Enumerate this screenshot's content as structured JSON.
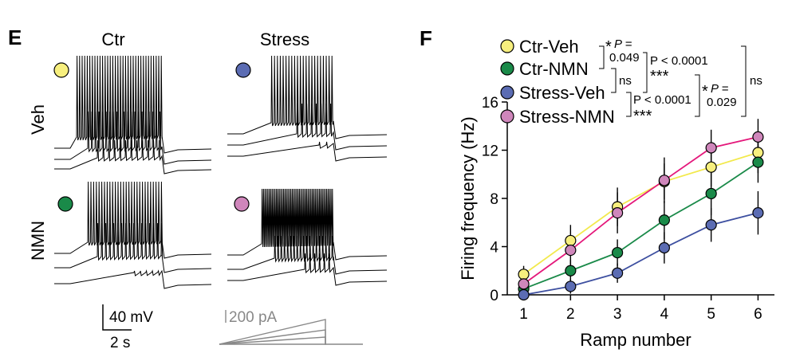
{
  "panel_e": {
    "letter": "E",
    "columns": [
      "Ctr",
      "Stress"
    ],
    "rows": [
      "Veh",
      "NMN"
    ],
    "condition_colors": [
      "#f7ef7e",
      "#1a8a49",
      "#5b6cb3",
      "#cf86bb"
    ],
    "scalebar_voltage": "40 mV",
    "scalebar_time": "2 s",
    "stimulus_label": "200 pA"
  },
  "panel_f": {
    "letter": "F",
    "stats": {
      "ctrveh_ctrnmn_star": "*",
      "ctrveh_ctrnmn_p": "P =",
      "ctrveh_ctrnmn_val": "0.049",
      "ctrveh_stressveh_p": "P < 0.0001",
      "ctrveh_stressveh_stars": "***",
      "ctrnmn_stressveh": "ns",
      "stressveh_stressnmn_p": "P < 0.0001",
      "stressveh_stressnmn_stars": "***",
      "ctrnmn_stressnmn_star": "*",
      "ctrnmn_stressnmn_p": "P =",
      "ctrnmn_stressnmn_val": "0.029",
      "ctrveh_stressnmn": "ns"
    }
  },
  "chart_data": {
    "type": "line",
    "title": "",
    "xlabel": "Ramp number",
    "ylabel": "Firing frequency (Hz)",
    "x": [
      1,
      2,
      3,
      4,
      5,
      6
    ],
    "xlim": [
      0.65,
      6.35
    ],
    "ylim": [
      0,
      16
    ],
    "yticks": [
      0,
      4,
      8,
      12,
      16
    ],
    "legend_position": "top-left",
    "series": [
      {
        "name": "Ctr-Veh",
        "line_color": "#f2e94c",
        "marker_color": "#f7ef7e",
        "values": [
          1.7,
          4.5,
          7.3,
          9.4,
          10.6,
          11.8
        ],
        "errors": [
          0.7,
          1.3,
          1.6,
          1.5,
          1.6,
          1.7
        ]
      },
      {
        "name": "Ctr-NMN",
        "line_color": "#1a8a49",
        "marker_color": "#1a8a49",
        "values": [
          0.5,
          2.0,
          3.5,
          6.2,
          8.4,
          11.0
        ],
        "errors": [
          0.4,
          0.9,
          1.1,
          1.6,
          1.8,
          1.7
        ]
      },
      {
        "name": "Stress-Veh",
        "line_color": "#3d4fa0",
        "marker_color": "#5b6cb3",
        "values": [
          0.0,
          0.7,
          1.8,
          3.9,
          5.8,
          6.8
        ],
        "errors": [
          0.2,
          0.6,
          0.8,
          1.3,
          1.4,
          1.8
        ]
      },
      {
        "name": "Stress-NMN",
        "line_color": "#e4187b",
        "marker_color": "#cf86bb",
        "values": [
          0.9,
          3.7,
          6.8,
          9.5,
          12.2,
          13.1
        ],
        "errors": [
          0.5,
          1.2,
          1.7,
          1.9,
          1.5,
          1.5
        ]
      }
    ]
  }
}
